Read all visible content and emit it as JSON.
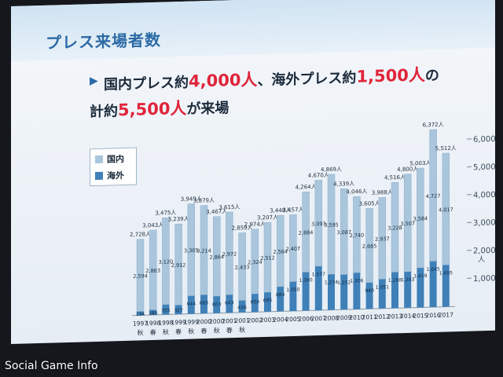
{
  "slide": {
    "title": "プレス来場者数",
    "line1": {
      "pre": "国内プレス約",
      "hl1": "4,000人",
      "mid": "、海外プレス約",
      "hl2": "1,500人",
      "post": "の"
    },
    "line2": {
      "pre": "計約",
      "hl": "5,500人",
      "post": "が来場"
    }
  },
  "watermark": "Social Game Info",
  "colors": {
    "domestic": "#a9c6dd",
    "overseas": "#3f80b8",
    "highlight": "#e0253a",
    "title": "#2b6aa5"
  },
  "chart_data": {
    "type": "bar",
    "stacked": true,
    "categories": [
      {
        "year": "1997",
        "season": "秋"
      },
      {
        "year": "1998",
        "season": "春"
      },
      {
        "year": "1998",
        "season": "秋"
      },
      {
        "year": "1999",
        "season": "春"
      },
      {
        "year": "1999",
        "season": "秋"
      },
      {
        "year": "2000",
        "season": "春"
      },
      {
        "year": "2000",
        "season": "秋"
      },
      {
        "year": "2001",
        "season": "春"
      },
      {
        "year": "2001",
        "season": "秋"
      },
      {
        "year": "2002",
        "season": ""
      },
      {
        "year": "2003",
        "season": ""
      },
      {
        "year": "2004",
        "season": ""
      },
      {
        "year": "2005",
        "season": ""
      },
      {
        "year": "2006",
        "season": ""
      },
      {
        "year": "2007",
        "season": ""
      },
      {
        "year": "2008",
        "season": ""
      },
      {
        "year": "2009",
        "season": ""
      },
      {
        "year": "2010",
        "season": ""
      },
      {
        "year": "2011",
        "season": ""
      },
      {
        "year": "2012",
        "season": ""
      },
      {
        "year": "2013",
        "season": ""
      },
      {
        "year": "2014",
        "season": ""
      },
      {
        "year": "2015",
        "season": ""
      },
      {
        "year": "2016",
        "season": ""
      },
      {
        "year": "2017",
        "season": ""
      }
    ],
    "series": [
      {
        "name": "国内",
        "values": [
          2594,
          2863,
          3120,
          2912,
          3305,
          3214,
          2864,
          2972,
          2433,
          2324,
          2512,
          2564,
          2407,
          2884,
          3093,
          3595,
          3087,
          2740,
          2665,
          2937,
          3228,
          3507,
          3584,
          4727,
          4017
        ],
        "labels": [
          "2,594",
          "2,863",
          "3,120",
          "2,912",
          "3,305",
          "3,214",
          "2,864",
          "2,972",
          "2,433",
          "2,324",
          "2,512",
          "2,564",
          "2,407",
          "2,884",
          "3,093",
          "3,595",
          "3,087",
          "2,740",
          "2,665",
          "2,937",
          "3,228",
          "3,507",
          "3,584",
          "4,727",
          "4,017"
        ]
      },
      {
        "name": "海外",
        "values": [
          134,
          180,
          355,
          327,
          644,
          665,
          603,
          643,
          426,
          650,
          695,
          884,
          1050,
          1380,
          1577,
          1274,
          1252,
          1306,
          940,
          1051,
          1288,
          1293,
          1419,
          1645,
          1495
        ],
        "labels": [
          "134",
          "180",
          "355",
          "327",
          "644",
          "665",
          "603",
          "643",
          "426",
          "650",
          "695",
          "884",
          "1,050",
          "1,380",
          "1,577",
          "1,274",
          "1,252",
          "1,306",
          "940",
          "1,051",
          "1,288",
          "1,293",
          "1,419",
          "1,645",
          "1,495"
        ]
      }
    ],
    "totals": [
      2728,
      3043,
      3475,
      3239,
      3949,
      3879,
      3467,
      3615,
      2859,
      2974,
      3207,
      3448,
      3457,
      4264,
      4670,
      4869,
      4339,
      4046,
      3605,
      3988,
      4516,
      4800,
      5003,
      6372,
      5512
    ],
    "total_labels": [
      "2,728人",
      "3,043人",
      "3,475人",
      "3,239人",
      "3,949人",
      "3,879人",
      "3,467人",
      "3,615人",
      "2,859人",
      "2,974人",
      "3,207人",
      "3,448人",
      "3,457人",
      "4,264人",
      "4,670人",
      "4,869人",
      "4,339人",
      "4,046人",
      "3,605人",
      "3,988人",
      "4,516人",
      "4,800人",
      "5,003人",
      "6,372人",
      "5,512人"
    ],
    "y_ticks": [
      1000,
      2000,
      3000,
      4000,
      5000,
      6000
    ],
    "y_tick_labels": [
      "1,000",
      "2,000",
      "3,000",
      "4,000",
      "5,000",
      "6,000"
    ],
    "y_unit": "人",
    "ylim": [
      0,
      6372
    ],
    "legend_position": "left"
  }
}
